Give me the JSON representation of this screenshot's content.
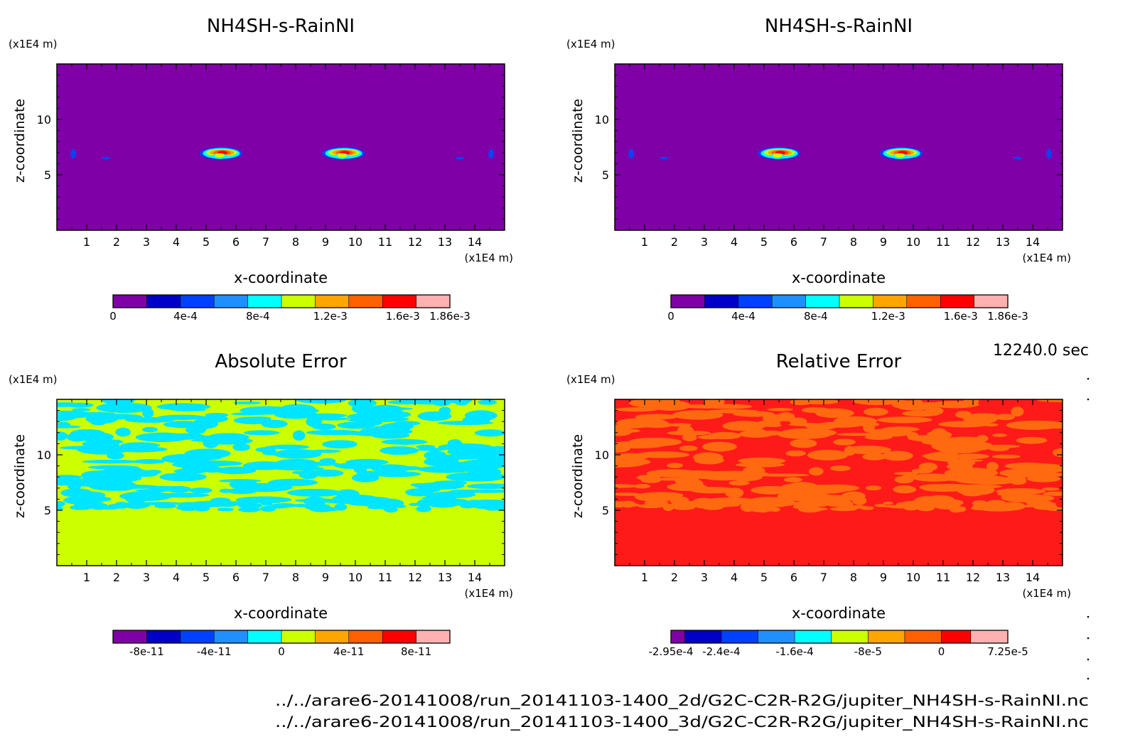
{
  "chart_data": [
    {
      "type": "heatmap",
      "title": "NH4SH-s-RainNI",
      "xlabel": "x-coordinate",
      "ylabel": "z-coordinate",
      "x_unit": "(x1E4 m)",
      "y_unit": "(x1E4 m)",
      "xlim": [
        0,
        15
      ],
      "ylim": [
        0,
        15
      ],
      "x_ticks": [
        1,
        2,
        3,
        4,
        5,
        6,
        7,
        8,
        9,
        10,
        11,
        12,
        13,
        14
      ],
      "y_ticks": [
        5,
        10
      ],
      "background_color": "#8000a8",
      "features": [
        {
          "kind": "blob",
          "x": 5.5,
          "z": 7.0,
          "peak": 0.00186
        },
        {
          "kind": "blob",
          "x": 9.6,
          "z": 7.0,
          "peak": 0.00186
        },
        {
          "kind": "speck",
          "x": 0.55,
          "z": 6.9
        },
        {
          "kind": "speck",
          "x": 1.65,
          "z": 6.5
        },
        {
          "kind": "speck",
          "x": 13.5,
          "z": 6.5
        },
        {
          "kind": "speck",
          "x": 14.55,
          "z": 6.9
        }
      ],
      "colorbar": {
        "colors": [
          "#8000a8",
          "#0000c8",
          "#0040ff",
          "#1e90ff",
          "#00ffff",
          "#ccff00",
          "#ffa500",
          "#ff6000",
          "#ff0000",
          "#ffb0b0"
        ],
        "min": 0,
        "max": 0.00186,
        "tick_values": [
          0,
          0.0004,
          0.0008,
          0.0012,
          0.0016,
          0.00186
        ],
        "tick_labels": [
          "0",
          "4e-4",
          "8e-4",
          "1.2e-3",
          "1.6e-3",
          "1.86e-3"
        ]
      }
    },
    {
      "type": "heatmap",
      "title": "NH4SH-s-RainNI",
      "xlabel": "x-coordinate",
      "ylabel": "z-coordinate",
      "x_unit": "(x1E4 m)",
      "y_unit": "(x1E4 m)",
      "xlim": [
        0,
        15
      ],
      "ylim": [
        0,
        15
      ],
      "x_ticks": [
        1,
        2,
        3,
        4,
        5,
        6,
        7,
        8,
        9,
        10,
        11,
        12,
        13,
        14
      ],
      "y_ticks": [
        5,
        10
      ],
      "background_color": "#8000a8",
      "features": [
        {
          "kind": "blob",
          "x": 5.5,
          "z": 7.0,
          "peak": 0.00186
        },
        {
          "kind": "blob",
          "x": 9.6,
          "z": 7.0,
          "peak": 0.00186
        },
        {
          "kind": "speck",
          "x": 0.55,
          "z": 6.9
        },
        {
          "kind": "speck",
          "x": 1.65,
          "z": 6.5
        },
        {
          "kind": "speck",
          "x": 13.5,
          "z": 6.5
        },
        {
          "kind": "speck",
          "x": 14.55,
          "z": 6.9
        }
      ],
      "colorbar": {
        "colors": [
          "#8000a8",
          "#0000c8",
          "#0040ff",
          "#1e90ff",
          "#00ffff",
          "#ccff00",
          "#ffa500",
          "#ff6000",
          "#ff0000",
          "#ffb0b0"
        ],
        "min": 0,
        "max": 0.00186,
        "tick_values": [
          0,
          0.0004,
          0.0008,
          0.0012,
          0.0016,
          0.00186
        ],
        "tick_labels": [
          "0",
          "4e-4",
          "8e-4",
          "1.2e-3",
          "1.6e-3",
          "1.86e-3"
        ]
      }
    },
    {
      "type": "heatmap",
      "title": "Absolute Error",
      "xlabel": "x-coordinate",
      "ylabel": "z-coordinate",
      "x_unit": "(x1E4 m)",
      "y_unit": "(x1E4 m)",
      "xlim": [
        0,
        15
      ],
      "ylim": [
        0,
        15
      ],
      "x_ticks": [
        1,
        2,
        3,
        4,
        5,
        6,
        7,
        8,
        9,
        10,
        11,
        12,
        13,
        14
      ],
      "y_ticks": [
        5,
        10
      ],
      "base_color": "#ccff00",
      "noise_color": "#00e5ff",
      "noise_zlim": [
        5.3,
        15
      ],
      "colorbar": {
        "colors": [
          "#8000a8",
          "#0000c8",
          "#0040ff",
          "#1e90ff",
          "#00ffff",
          "#ccff00",
          "#ffa500",
          "#ff6000",
          "#ff0000",
          "#ffb0b0"
        ],
        "min": -1e-10,
        "max": 1e-10,
        "tick_values": [
          -8e-11,
          -4e-11,
          0,
          4e-11,
          8e-11
        ],
        "tick_labels": [
          "-8e-11",
          "-4e-11",
          "0",
          "4e-11",
          "8e-11"
        ]
      }
    },
    {
      "type": "heatmap",
      "title": "Relative Error",
      "xlabel": "x-coordinate",
      "ylabel": "z-coordinate",
      "x_unit": "(x1E4 m)",
      "y_unit": "(x1E4 m)",
      "xlim": [
        0,
        15
      ],
      "ylim": [
        0,
        15
      ],
      "x_ticks": [
        1,
        2,
        3,
        4,
        5,
        6,
        7,
        8,
        9,
        10,
        11,
        12,
        13,
        14
      ],
      "y_ticks": [
        5,
        10
      ],
      "base_color": "#ff1a1a",
      "noise_color": "#ff6a10",
      "noise_zlim": [
        5.3,
        15
      ],
      "colorbar": {
        "colors": [
          "#8000a8",
          "#0000c8",
          "#0040ff",
          "#1e90ff",
          "#00ffff",
          "#ccff00",
          "#ffa500",
          "#ff6000",
          "#ff0000",
          "#ffb0b0"
        ],
        "min": -0.000295,
        "max": 7.25e-05,
        "bins": [
          -0.000295,
          -0.00028,
          -0.00024,
          -0.0002,
          -0.00016,
          -0.00012,
          -8e-05,
          -4e-05,
          0,
          3.2e-05,
          7.25e-05
        ],
        "tick_values": [
          -0.000295,
          -0.00024,
          -0.00016,
          -8e-05,
          0,
          7.25e-05
        ],
        "tick_labels": [
          "-2.95e-4",
          "-2.4e-4",
          "-1.6e-4",
          "-8e-5",
          "0",
          "7.25e-5"
        ]
      }
    }
  ],
  "time_label": "12240.0 sec",
  "file_paths": [
    "../../arare6-20141008/run_20141103-1400_2d/G2C-C2R-R2G/jupiter_NH4SH-s-RainNI.nc",
    "../../arare6-20141008/run_20141103-1400_3d/G2C-C2R-R2G/jupiter_NH4SH-s-RainNI.nc"
  ]
}
